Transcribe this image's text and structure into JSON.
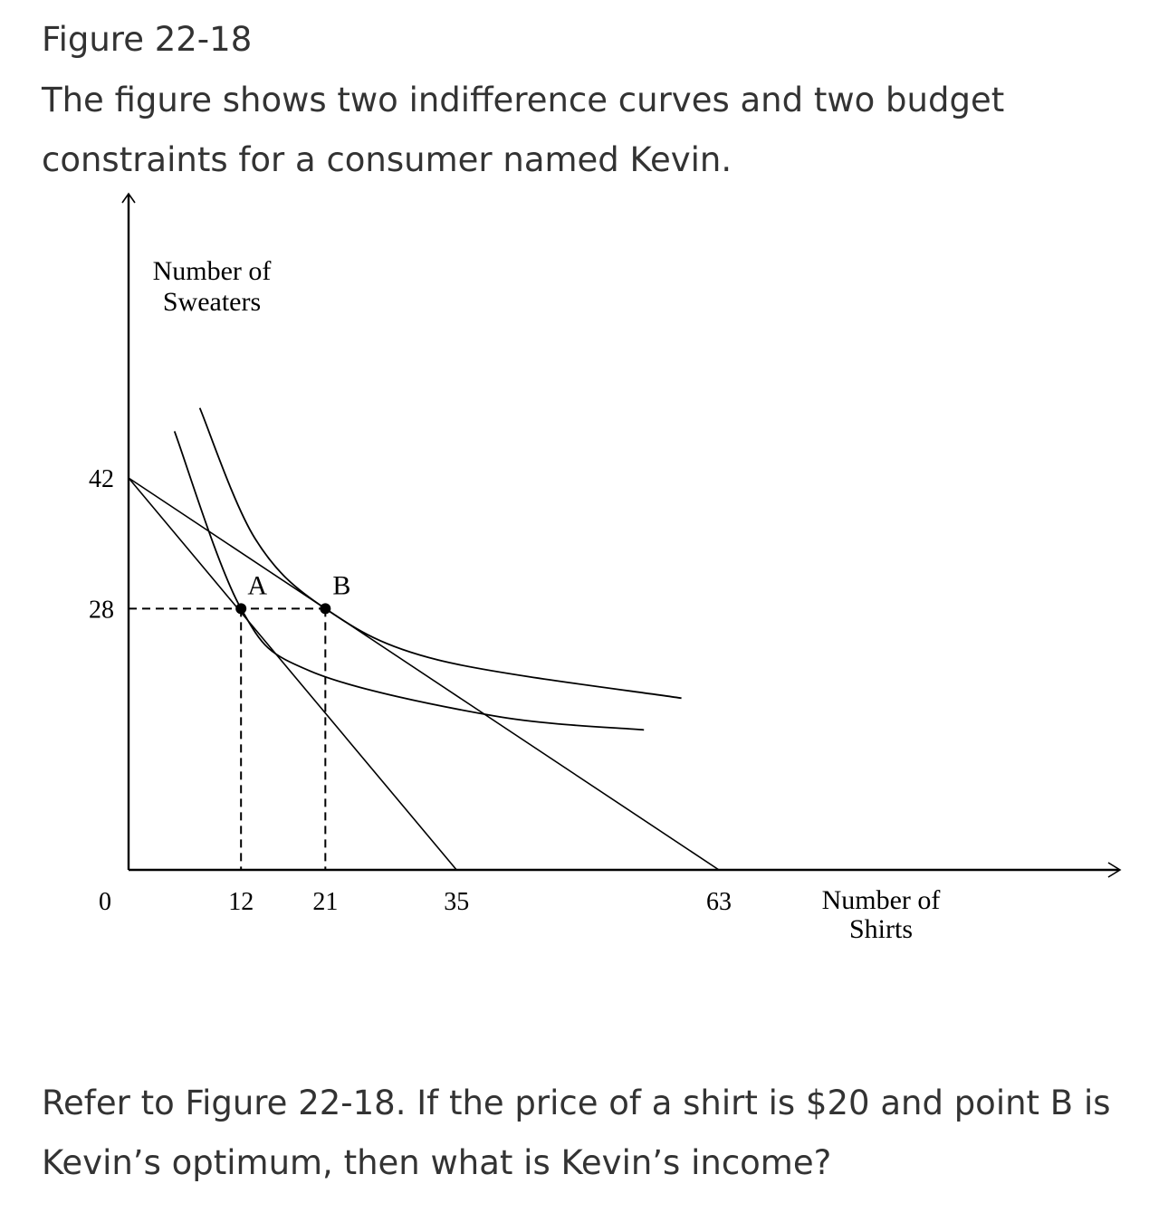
{
  "figure": {
    "title": "Figure 22-18",
    "caption": "The figure shows two indifference curves and two budget constraints for a consumer named Kevin."
  },
  "question": "Refer to Figure 22-18. If the price of a shirt is $20 and point B is Kevin’s optimum, then what is Kevin’s income?",
  "chart_data": {
    "type": "line",
    "ylabel_lines": [
      "Number of",
      "Sweaters"
    ],
    "xlabel_lines": [
      "Number of",
      "Shirts"
    ],
    "x_ticks": [
      0,
      12,
      21,
      35,
      63
    ],
    "y_ticks": [
      28,
      42
    ],
    "origin_label": "0",
    "budget_lines": [
      {
        "x_intercept": 35,
        "y_intercept": 42
      },
      {
        "x_intercept": 63,
        "y_intercept": 42
      }
    ],
    "indifference_curves": [
      {
        "points": [
          [
            4.9,
            47.0
          ],
          [
            12,
            28
          ],
          [
            19.4,
            21.3
          ],
          [
            39,
            16.5
          ],
          [
            55,
            15.0
          ]
        ]
      },
      {
        "points": [
          [
            7.6,
            49.5
          ],
          [
            13.5,
            35.5
          ],
          [
            21,
            28
          ],
          [
            33,
            22.5
          ],
          [
            59,
            18.4
          ]
        ]
      }
    ],
    "optimum_points": [
      {
        "label": "A",
        "x": 12,
        "y": 28
      },
      {
        "label": "B",
        "x": 21,
        "y": 28
      }
    ],
    "guide_lines": {
      "style": "dashed",
      "at_y": 28,
      "at_x": [
        12,
        21
      ]
    }
  }
}
